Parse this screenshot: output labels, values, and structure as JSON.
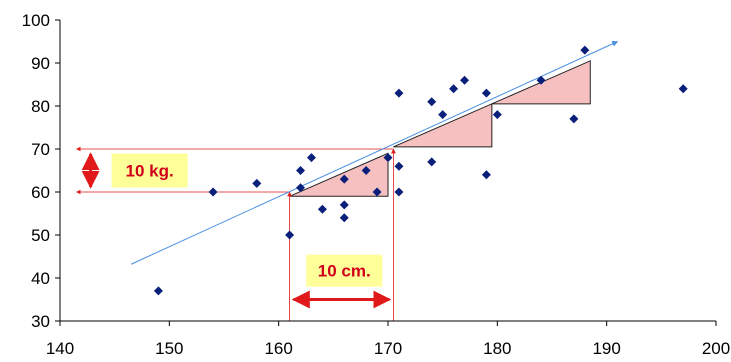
{
  "chart_data": {
    "type": "scatter",
    "title": "",
    "xlabel": "",
    "ylabel": "",
    "xlim": [
      140,
      200
    ],
    "ylim": [
      30,
      100
    ],
    "x_ticks": [
      140,
      150,
      160,
      170,
      180,
      190,
      200
    ],
    "y_ticks": [
      30,
      40,
      50,
      60,
      70,
      80,
      90,
      100
    ],
    "x_tick_labels": [
      "140",
      "150",
      "160",
      "170",
      "180",
      "190",
      "200"
    ],
    "y_tick_labels": [
      "30",
      "40",
      "50",
      "60",
      "70",
      "80",
      "90",
      "100"
    ],
    "grid": false,
    "series": [
      {
        "marker": "diamond",
        "color": "#0a1f7a",
        "points": [
          [
            149,
            37
          ],
          [
            154,
            60
          ],
          [
            158,
            62
          ],
          [
            161,
            50
          ],
          [
            162,
            65
          ],
          [
            162,
            61
          ],
          [
            163,
            68
          ],
          [
            164,
            56
          ],
          [
            166,
            63
          ],
          [
            166,
            57
          ],
          [
            166,
            54
          ],
          [
            168,
            65
          ],
          [
            169,
            60
          ],
          [
            170,
            68
          ],
          [
            171,
            83
          ],
          [
            171,
            66
          ],
          [
            171,
            60
          ],
          [
            174,
            81
          ],
          [
            174,
            67
          ],
          [
            175,
            78
          ],
          [
            176,
            84
          ],
          [
            177,
            86
          ],
          [
            179,
            83
          ],
          [
            179,
            64
          ],
          [
            180,
            78
          ],
          [
            184,
            86
          ],
          [
            187,
            77
          ],
          [
            188,
            93
          ],
          [
            197,
            84
          ]
        ]
      }
    ],
    "trendline": {
      "color": "#4a90e2",
      "from": [
        146.5,
        43.2
      ],
      "to": [
        191,
        95
      ]
    },
    "slope_triangles": [
      {
        "x0": 161,
        "x1": 170,
        "y0": 59,
        "y1": 69
      },
      {
        "x0": 170.5,
        "x1": 179.5,
        "y0": 70.5,
        "y1": 80.5
      },
      {
        "x0": 179.5,
        "x1": 188.5,
        "y0": 80.5,
        "y1": 90.5
      }
    ],
    "triangle_fill": "#f7c0c0",
    "annotation_color": "#e01a1a",
    "label_bg": "#ffff99",
    "annotations": {
      "weight_label": "10 kg.",
      "height_label": "10 cm.",
      "weight_span": [
        60,
        70
      ],
      "height_span": [
        161,
        170.5
      ],
      "weight_guide_x": 141.5,
      "weight_bracket_x": 142.8,
      "height_guide_y": 30,
      "height_bracket_y": 35
    }
  }
}
